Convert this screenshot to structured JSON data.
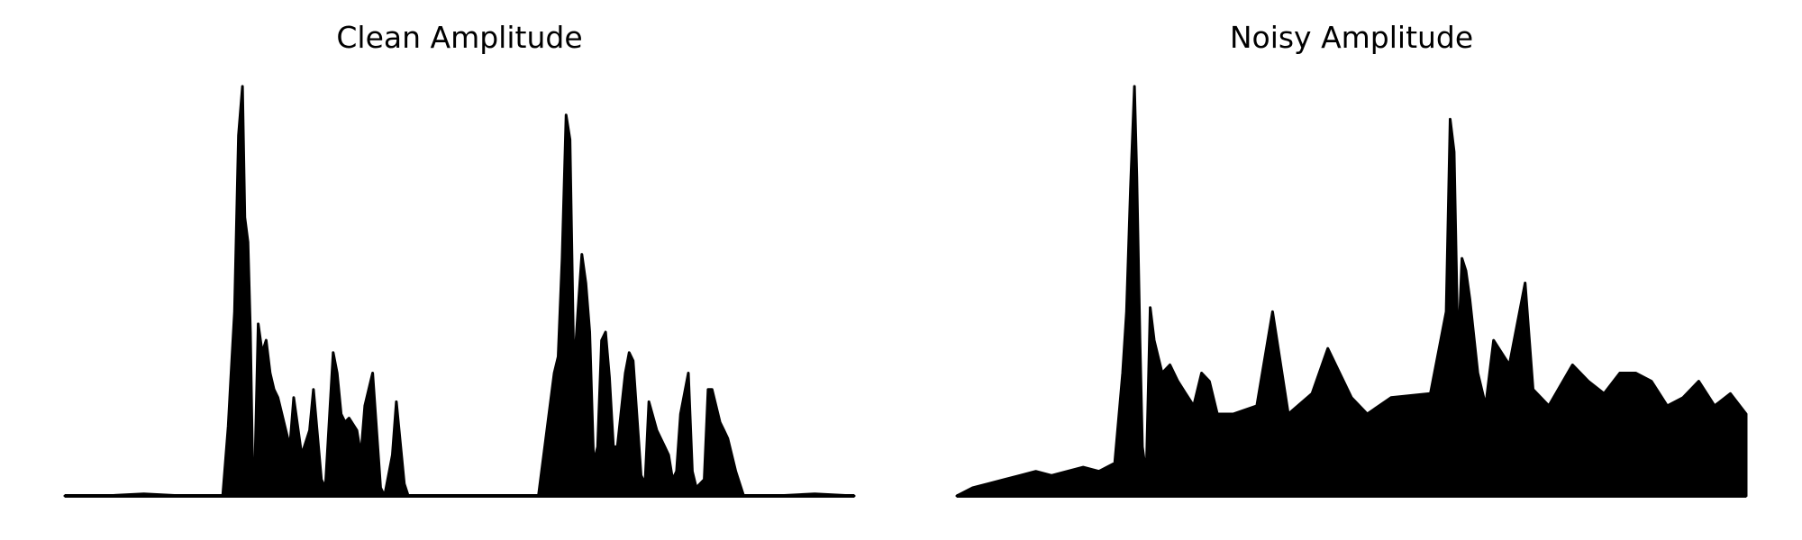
{
  "chart_data": [
    {
      "type": "line",
      "title": "Clean Amplitude",
      "xlabel": "",
      "ylabel": "",
      "axes_visible": false,
      "grid": false,
      "xlim": [
        0,
        1
      ],
      "ylim": [
        0,
        1
      ],
      "color": "#000000",
      "x": [
        0.0,
        0.05,
        0.1,
        0.15,
        0.2,
        0.207,
        0.21,
        0.215,
        0.22,
        0.225,
        0.228,
        0.232,
        0.235,
        0.238,
        0.24,
        0.245,
        0.25,
        0.255,
        0.26,
        0.265,
        0.27,
        0.275,
        0.28,
        0.285,
        0.29,
        0.3,
        0.31,
        0.315,
        0.325,
        0.33,
        0.34,
        0.345,
        0.35,
        0.355,
        0.36,
        0.37,
        0.375,
        0.38,
        0.39,
        0.4,
        0.405,
        0.415,
        0.42,
        0.43,
        0.435,
        0.45,
        0.46,
        0.47,
        0.475,
        0.485,
        0.49,
        0.5,
        0.51,
        0.52,
        0.53,
        0.55,
        0.6,
        0.62,
        0.625,
        0.63,
        0.635,
        0.64,
        0.645,
        0.65,
        0.655,
        0.66,
        0.665,
        0.67,
        0.675,
        0.68,
        0.685,
        0.69,
        0.695,
        0.7,
        0.71,
        0.715,
        0.72,
        0.73,
        0.735,
        0.74,
        0.75,
        0.76,
        0.765,
        0.77,
        0.775,
        0.78,
        0.79,
        0.795,
        0.8,
        0.81,
        0.815,
        0.82,
        0.83,
        0.835,
        0.84,
        0.85,
        0.86,
        0.865,
        0.87,
        0.88,
        0.9,
        0.95,
        1.0
      ],
      "y": [
        0.0,
        0.0,
        0.005,
        0.0,
        0.0,
        0.17,
        0.28,
        0.45,
        0.88,
        1.0,
        0.68,
        0.62,
        0.4,
        0.05,
        0.0,
        0.42,
        0.35,
        0.38,
        0.3,
        0.26,
        0.24,
        0.2,
        0.16,
        0.12,
        0.24,
        0.1,
        0.16,
        0.26,
        0.04,
        0.02,
        0.35,
        0.3,
        0.2,
        0.18,
        0.19,
        0.16,
        0.1,
        0.22,
        0.3,
        0.02,
        0.0,
        0.1,
        0.23,
        0.03,
        0.0,
        0.0,
        0.0,
        0.0,
        0.0,
        0.0,
        0.0,
        0.0,
        0.0,
        0.0,
        0.0,
        0.0,
        0.0,
        0.3,
        0.34,
        0.58,
        0.93,
        0.87,
        0.3,
        0.45,
        0.59,
        0.52,
        0.4,
        0.08,
        0.12,
        0.38,
        0.4,
        0.29,
        0.12,
        0.12,
        0.3,
        0.35,
        0.33,
        0.05,
        0.03,
        0.23,
        0.16,
        0.12,
        0.1,
        0.04,
        0.06,
        0.2,
        0.3,
        0.06,
        0.02,
        0.04,
        0.26,
        0.26,
        0.18,
        0.16,
        0.14,
        0.06,
        0.0,
        0.0,
        0.0,
        0.0,
        0.0,
        0.005,
        0.0
      ]
    },
    {
      "type": "line",
      "title": "Noisy Amplitude",
      "xlabel": "",
      "ylabel": "",
      "axes_visible": false,
      "grid": false,
      "xlim": [
        0,
        1
      ],
      "ylim": [
        0,
        1
      ],
      "color": "#000000",
      "x": [
        0.0,
        0.02,
        0.04,
        0.06,
        0.08,
        0.1,
        0.12,
        0.14,
        0.16,
        0.18,
        0.2,
        0.21,
        0.215,
        0.22,
        0.225,
        0.228,
        0.232,
        0.235,
        0.24,
        0.245,
        0.25,
        0.26,
        0.27,
        0.28,
        0.29,
        0.3,
        0.31,
        0.32,
        0.33,
        0.35,
        0.38,
        0.4,
        0.42,
        0.45,
        0.47,
        0.5,
        0.52,
        0.55,
        0.6,
        0.62,
        0.625,
        0.63,
        0.635,
        0.64,
        0.645,
        0.65,
        0.66,
        0.67,
        0.68,
        0.7,
        0.72,
        0.73,
        0.75,
        0.78,
        0.8,
        0.82,
        0.84,
        0.86,
        0.88,
        0.9,
        0.92,
        0.94,
        0.96,
        0.98,
        1.0
      ],
      "y": [
        0.0,
        0.02,
        0.03,
        0.04,
        0.05,
        0.06,
        0.05,
        0.06,
        0.07,
        0.06,
        0.08,
        0.3,
        0.45,
        0.75,
        1.0,
        0.78,
        0.38,
        0.12,
        0.05,
        0.46,
        0.38,
        0.3,
        0.32,
        0.28,
        0.25,
        0.22,
        0.3,
        0.28,
        0.2,
        0.2,
        0.22,
        0.45,
        0.2,
        0.25,
        0.36,
        0.24,
        0.2,
        0.24,
        0.25,
        0.45,
        0.92,
        0.84,
        0.34,
        0.58,
        0.55,
        0.48,
        0.3,
        0.22,
        0.38,
        0.32,
        0.52,
        0.26,
        0.22,
        0.32,
        0.28,
        0.25,
        0.3,
        0.3,
        0.28,
        0.22,
        0.24,
        0.28,
        0.22,
        0.25,
        0.2
      ]
    }
  ]
}
